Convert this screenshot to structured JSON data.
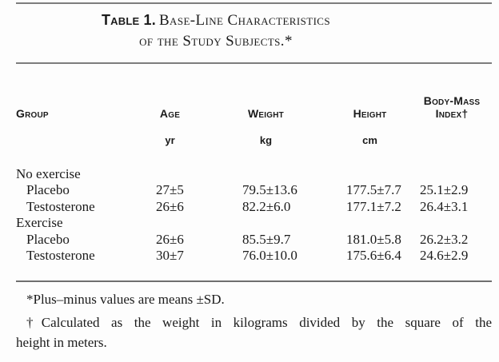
{
  "title": {
    "label": "Table 1.",
    "line1": "Base-Line Characteristics",
    "line2": "of the Study Subjects.*"
  },
  "table": {
    "headers": {
      "group": "Group",
      "age": "Age",
      "weight": "Weight",
      "height": "Height",
      "bmi": "Body-Mass Index†"
    },
    "units": {
      "age": "yr",
      "weight": "kg",
      "height": "cm"
    },
    "rows": [
      {
        "label": "No exercise",
        "age": "",
        "weight": "",
        "height": "",
        "bmi": ""
      },
      {
        "label": "Placebo",
        "age": "27±5",
        "weight": "79.5±13.6",
        "height": "177.5±7.7",
        "bmi": "25.1±2.9"
      },
      {
        "label": "Testosterone",
        "age": "26±6",
        "weight": "82.2±6.0",
        "height": "177.1±7.2",
        "bmi": "26.4±3.1"
      },
      {
        "label": "Exercise",
        "age": "",
        "weight": "",
        "height": "",
        "bmi": ""
      },
      {
        "label": "Placebo",
        "age": "26±6",
        "weight": "85.5±9.7",
        "height": "181.0±5.8",
        "bmi": "26.2±3.2"
      },
      {
        "label": "Testosterone",
        "age": "30±7",
        "weight": "76.0±10.0",
        "height": "175.6±6.4",
        "bmi": "24.6±2.9"
      }
    ]
  },
  "footnotes": {
    "asterisk": "*Plus–minus values are means ±SD.",
    "dagger_line1": "†Calculated as the weight in kilograms divided by the square of the",
    "dagger_line2": "height in meters."
  },
  "colors": {
    "rule_gray": "#7d7d7d",
    "text": "#1b1b1b",
    "background": "#fdfdfd"
  }
}
